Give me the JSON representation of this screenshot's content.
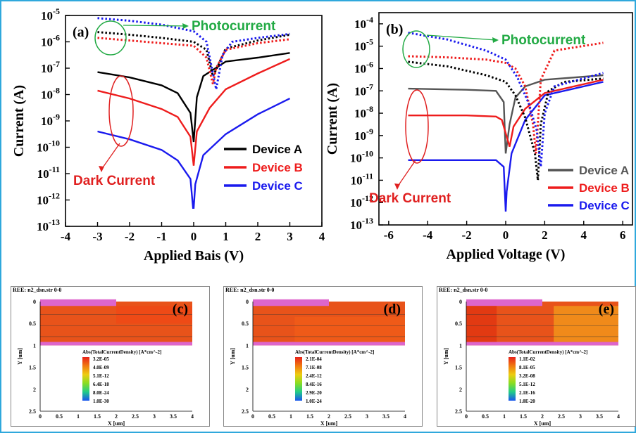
{
  "colors": {
    "device_a": "#000000",
    "device_b": "#ee1c1c",
    "device_c": "#1a1aee",
    "dev_a_b": "#555555",
    "photo": "#22aa44",
    "dark": "#e02020",
    "frame": "#2fa8dc",
    "sim_header": "#cc88dd"
  },
  "chart_data": [
    {
      "type": "line",
      "panel_label": "(a)",
      "xlabel": "Applied Bais (V)",
      "ylabel": "Current (A)",
      "x_ticks": [
        "-4",
        "-3",
        "-2",
        "-1",
        "0",
        "1",
        "2",
        "3",
        "4"
      ],
      "y_tick_exponents": [
        "-5",
        "-6",
        "-7",
        "-8",
        "-9",
        "-10",
        "-11",
        "-12",
        "-13"
      ],
      "xlim": [
        -4,
        4
      ],
      "ylim_log10": [
        -13,
        -5
      ],
      "log_y": true,
      "legend_position": "center-right",
      "annotations": {
        "photocurrent": "Photocurrent",
        "dark_current": "Dark Current"
      },
      "series": [
        {
          "name": "Device A",
          "style": "solid",
          "x": [
            -3,
            -2,
            -1,
            -0.5,
            -0.1,
            0,
            0.1,
            0.3,
            1,
            2,
            3
          ],
          "y_log10": [
            -7.15,
            -7.35,
            -7.65,
            -7.95,
            -8.7,
            -9.8,
            -8.1,
            -7.3,
            -6.75,
            -6.6,
            -6.42
          ]
        },
        {
          "name": "Device B",
          "style": "solid",
          "x": [
            -3,
            -2,
            -1,
            -0.5,
            -0.1,
            0,
            0.1,
            0.5,
            1,
            2,
            3
          ],
          "y_log10": [
            -7.85,
            -8.15,
            -8.55,
            -8.85,
            -9.6,
            -10.7,
            -9.4,
            -8.5,
            -7.8,
            -7.2,
            -6.65
          ]
        },
        {
          "name": "Device C",
          "style": "solid",
          "x": [
            -3,
            -2,
            -1,
            -0.5,
            -0.1,
            -0.02,
            0,
            0.05,
            0.3,
            1,
            2,
            3
          ],
          "y_log10": [
            -9.4,
            -9.7,
            -10.1,
            -10.5,
            -11.2,
            -12.3,
            -12.3,
            -11.4,
            -10.3,
            -9.5,
            -8.75,
            -8.15
          ]
        },
        {
          "name": "Device A",
          "style": "dotted",
          "x": [
            -3,
            -2,
            -1,
            0,
            0.4,
            0.6,
            0.8,
            1,
            2,
            3
          ],
          "y_log10": [
            -5.63,
            -5.73,
            -5.85,
            -6.0,
            -6.3,
            -7.3,
            -6.8,
            -6.25,
            -5.95,
            -5.73
          ]
        },
        {
          "name": "Device B",
          "style": "dotted",
          "x": [
            -3,
            -2,
            -1,
            0,
            0.4,
            0.6,
            0.7,
            1,
            2,
            3
          ],
          "y_log10": [
            -5.85,
            -5.95,
            -6.05,
            -6.15,
            -6.6,
            -7.6,
            -7.0,
            -6.3,
            -6.05,
            -5.9
          ]
        },
        {
          "name": "Device C",
          "style": "dotted",
          "x": [
            -3,
            -2,
            -1,
            0,
            0.4,
            0.7,
            0.9,
            1.2,
            2,
            3
          ],
          "y_log10": [
            -5.1,
            -5.2,
            -5.35,
            -5.6,
            -6.0,
            -7.8,
            -6.5,
            -6.0,
            -5.85,
            -5.7
          ]
        }
      ]
    },
    {
      "type": "line",
      "panel_label": "(b)",
      "xlabel": "Applied Voltage (V)",
      "ylabel": "Current (A)",
      "x_ticks": [
        "-6",
        "-4",
        "-2",
        "0",
        "2",
        "4",
        "6"
      ],
      "y_tick_exponents": [
        "-4",
        "-5",
        "-6",
        "-7",
        "-8",
        "-9",
        "-10",
        "-11",
        "-12",
        "-13"
      ],
      "xlim": [
        -6.5,
        6.5
      ],
      "ylim_log10": [
        -13,
        -3.5
      ],
      "log_y": true,
      "legend_position": "bottom-right",
      "annotations": {
        "photocurrent": "Photocurrent",
        "dark_current": "Dark Current"
      },
      "series": [
        {
          "name": "Device A",
          "style": "solid",
          "x": [
            -5,
            -2,
            -0.5,
            -0.1,
            0,
            0.2,
            0.5,
            1,
            2,
            5
          ],
          "y_log10": [
            -6.9,
            -6.95,
            -7.0,
            -7.5,
            -9.8,
            -8.5,
            -7.3,
            -6.8,
            -6.5,
            -6.3
          ]
        },
        {
          "name": "Device B",
          "style": "solid",
          "x": [
            -5,
            -2,
            -0.5,
            -0.2,
            0.1,
            0.2,
            0.4,
            1,
            2,
            5
          ],
          "y_log10": [
            -8.1,
            -8.1,
            -8.15,
            -8.3,
            -9.2,
            -9.5,
            -8.6,
            -7.8,
            -7.1,
            -6.5
          ]
        },
        {
          "name": "Device C",
          "style": "solid",
          "x": [
            -5,
            -2,
            -0.5,
            -0.1,
            0,
            0.05,
            0.3,
            1,
            2,
            5
          ],
          "y_log10": [
            -10.1,
            -10.1,
            -10.1,
            -10.4,
            -12.4,
            -11.5,
            -9.8,
            -8.3,
            -7.2,
            -6.6
          ]
        },
        {
          "name": "Device A",
          "style": "dotted",
          "x": [
            -5,
            -3,
            -1,
            0,
            0.5,
            1,
            1.5,
            1.65,
            1.8,
            2.2,
            3,
            5
          ],
          "y_log10": [
            -5.7,
            -5.9,
            -6.3,
            -6.6,
            -7.2,
            -8.2,
            -9.8,
            -11.0,
            -8.5,
            -7.0,
            -6.6,
            -6.45
          ]
        },
        {
          "name": "Device B",
          "style": "dotted",
          "x": [
            -5,
            -3,
            -1,
            0,
            0.5,
            1,
            1.4,
            1.55,
            1.8,
            2.5,
            5
          ],
          "y_log10": [
            -5.45,
            -5.5,
            -5.6,
            -5.75,
            -6.0,
            -6.8,
            -8.5,
            -9.8,
            -6.5,
            -5.2,
            -4.85
          ]
        },
        {
          "name": "Device C",
          "style": "dotted",
          "x": [
            -5,
            -3,
            -1,
            0,
            0.6,
            1.2,
            1.6,
            1.8,
            2.0,
            2.5,
            5
          ],
          "y_log10": [
            -4.4,
            -4.7,
            -5.2,
            -5.6,
            -6.4,
            -7.6,
            -8.8,
            -10.4,
            -8.0,
            -6.8,
            -6.2
          ]
        }
      ]
    }
  ],
  "simulations": [
    {
      "label": "(c)",
      "header": "REE: n2_dsn.str 0-0",
      "x_ticks": [
        "0",
        "0.5",
        "1",
        "1.5",
        "2",
        "2.5",
        "3",
        "3.5",
        "4"
      ],
      "y_ticks": [
        "0",
        "0.5",
        "1",
        "1.5",
        "2",
        "2.5"
      ],
      "xlabel": "X [um]",
      "ylabel": "Y [um]",
      "cb_title": "Abs(TotalCurrentDensity) [A*cm^-2]",
      "cb_values": [
        "3.2E-05",
        "4.0E-09",
        "5.1E-12",
        "6.4E-18",
        "8.0E-24",
        "1.0E-30"
      ]
    },
    {
      "label": "(d)",
      "header": "REE: n2_dsn.str 0-0",
      "x_ticks": [
        "0",
        "0.5",
        "1",
        "1.5",
        "2",
        "2.5",
        "3",
        "3.5",
        "4"
      ],
      "y_ticks": [
        "0",
        "0.5",
        "1",
        "1.5",
        "2",
        "2.5"
      ],
      "xlabel": "X [um]",
      "ylabel": "Y [um]",
      "cb_title": "Abs(TotalCurrentDensity) [A*cm^-2]",
      "cb_values": [
        "2.1E-04",
        "7.1E-08",
        "2.4E-12",
        "8.4E-16",
        "2.9E-20",
        "1.0E-24"
      ]
    },
    {
      "label": "(e)",
      "header": "REE: n2_dsn.str 0-0",
      "x_ticks": [
        "0",
        "0.5",
        "1",
        "1.5",
        "2",
        "2.5",
        "3",
        "3.5",
        "4"
      ],
      "y_ticks": [
        "0",
        "0.5",
        "1",
        "1.5",
        "2",
        "2.5"
      ],
      "xlabel": "X [um]",
      "ylabel": "Y [um]",
      "cb_title": "Abs(TotalCurrentDensity) [A*cm^-2]",
      "cb_values": [
        "1.1E-02",
        "8.1E-05",
        "3.2E-08",
        "5.1E-12",
        "2.1E-16",
        "1.0E-20"
      ]
    }
  ]
}
